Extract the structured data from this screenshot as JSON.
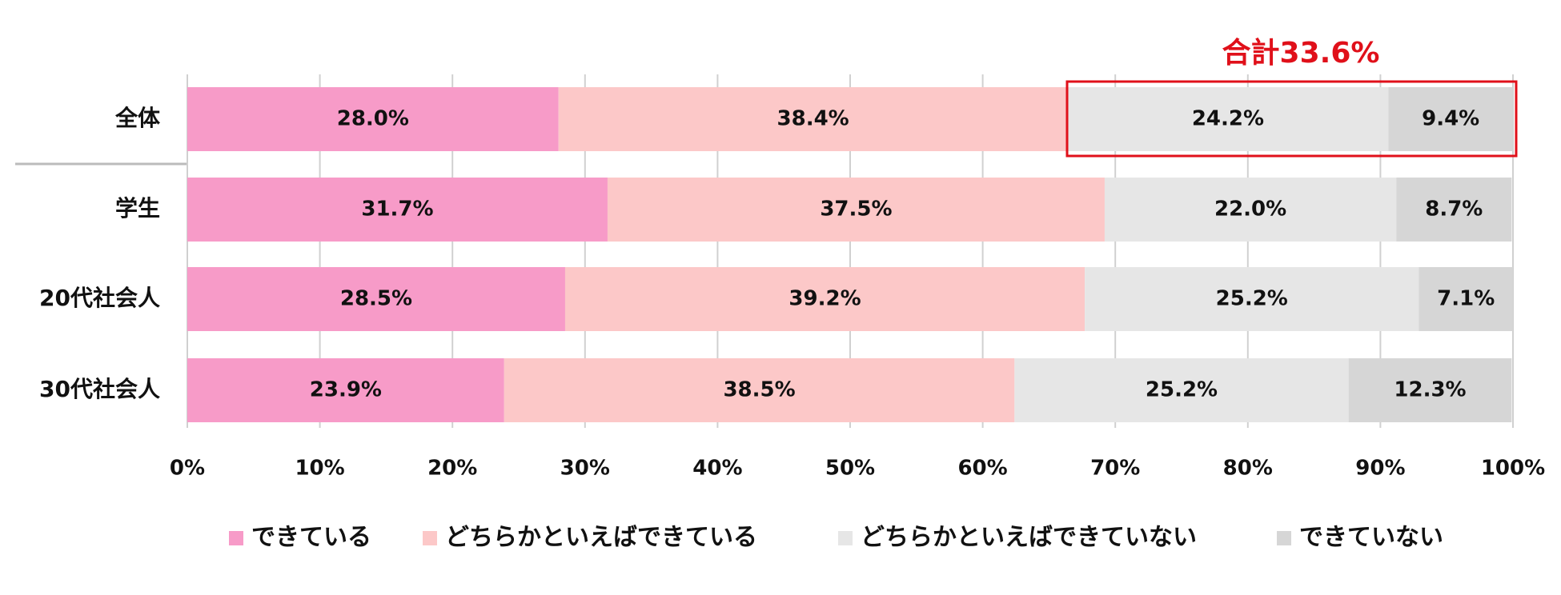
{
  "chart_data": {
    "type": "stacked-bar-horizontal",
    "annotation": "合計33.6%",
    "categories": [
      "全体",
      "学生",
      "20代社会人",
      "30代社会人"
    ],
    "series": [
      {
        "name": "できている",
        "color": "#f79bc8",
        "values": [
          28.0,
          31.7,
          28.5,
          23.9
        ],
        "value_labels": [
          "28.0%",
          "31.7%",
          "28.5%",
          "23.9%"
        ]
      },
      {
        "name": "どちらかといえばできている",
        "color": "#fcc8c8",
        "values": [
          38.4,
          37.5,
          39.2,
          38.5
        ],
        "value_labels": [
          "38.4%",
          "37.5%",
          "39.2%",
          "38.5%"
        ]
      },
      {
        "name": "どちらかといえばできていない",
        "color": "#e6e6e6",
        "values": [
          24.2,
          22.0,
          25.2,
          25.2
        ],
        "value_labels": [
          "24.2%",
          "22.0%",
          "25.2%",
          "25.2%"
        ]
      },
      {
        "name": "できていない",
        "color": "#d6d6d6",
        "values": [
          9.4,
          8.7,
          7.1,
          12.3
        ],
        "value_labels": [
          "9.4%",
          "8.7%",
          "7.1%",
          "12.3%"
        ]
      }
    ],
    "xlim": [
      0,
      100
    ],
    "xticks": [
      {
        "value": 0,
        "label": "0%"
      },
      {
        "value": 10,
        "label": "10%"
      },
      {
        "value": 20,
        "label": "20%"
      },
      {
        "value": 30,
        "label": "30%"
      },
      {
        "value": 40,
        "label": "40%"
      },
      {
        "value": 50,
        "label": "50%"
      },
      {
        "value": 60,
        "label": "60%"
      },
      {
        "value": 70,
        "label": "70%"
      },
      {
        "value": 80,
        "label": "80%"
      },
      {
        "value": 90,
        "label": "90%"
      },
      {
        "value": 100,
        "label": "100%"
      }
    ],
    "grid": true
  }
}
